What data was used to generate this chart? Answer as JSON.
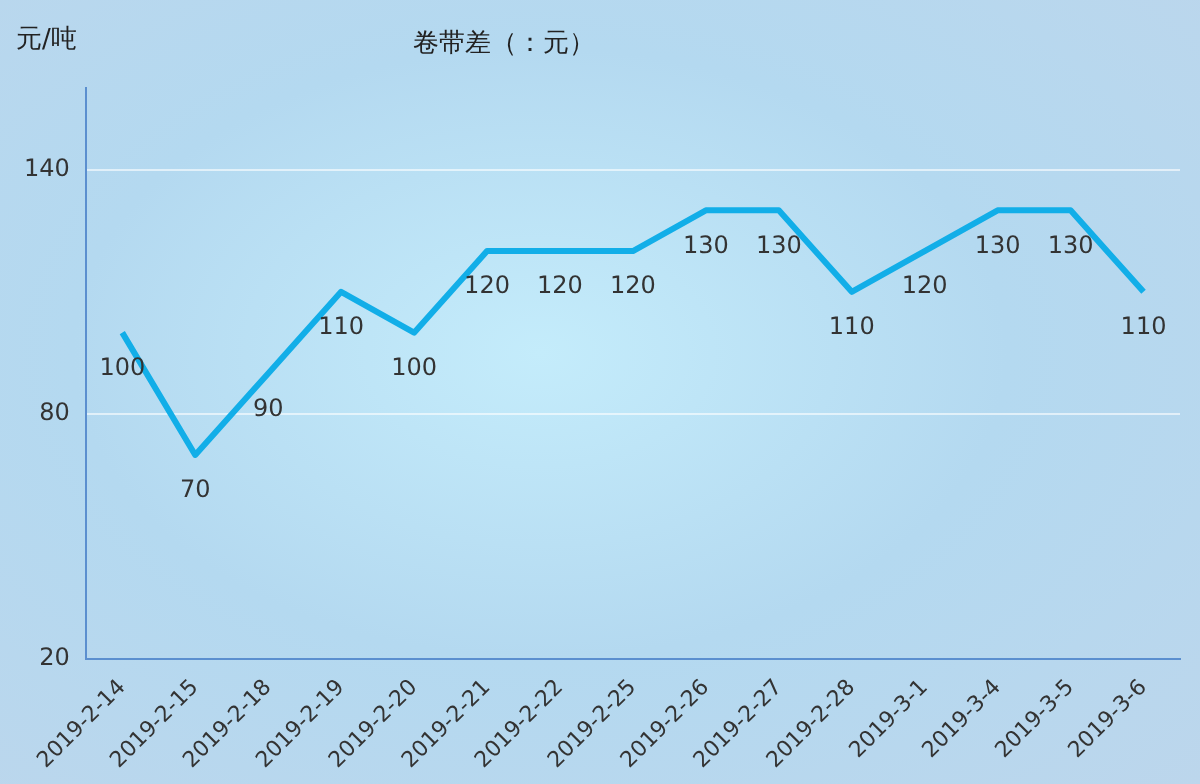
{
  "chart_data": {
    "type": "line",
    "title": "卷带差（：元）",
    "ylabel": "元/吨",
    "categories": [
      "2019-2-14",
      "2019-2-15",
      "2019-2-18",
      "2019-2-19",
      "2019-2-20",
      "2019-2-21",
      "2019-2-22",
      "2019-2-25",
      "2019-2-26",
      "2019-2-27",
      "2019-2-28",
      "2019-3-1",
      "2019-3-4",
      "2019-3-5",
      "2019-3-6"
    ],
    "series": [
      {
        "color": "#12aee8",
        "values": [
          100,
          70,
          90,
          110,
          100,
          120,
          120,
          120,
          130,
          130,
          110,
          120,
          130,
          130,
          110
        ]
      }
    ],
    "ylim": [
      20,
      160
    ],
    "yticks": [
      20,
      80,
      140
    ],
    "grid": "y",
    "data_labels": true,
    "marker": "none",
    "line_style": "solid",
    "legend": false
  }
}
